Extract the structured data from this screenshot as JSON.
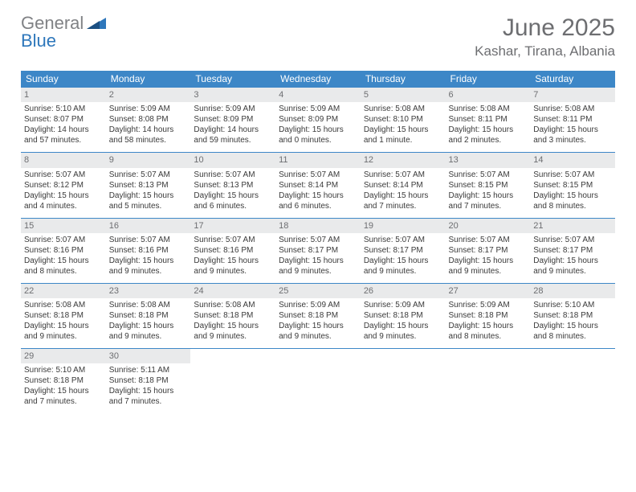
{
  "brand": {
    "part1": "General",
    "part2": "Blue"
  },
  "title": "June 2025",
  "location": "Kashar, Tirana, Albania",
  "colors": {
    "header_bg": "#3d87c7",
    "header_text": "#ffffff",
    "daynum_bg": "#e9eaeb",
    "daynum_text": "#6d6e71",
    "row_border": "#3d87c7",
    "title_text": "#6d6e71",
    "body_text": "#3a3a3a",
    "logo_gray": "#808285",
    "logo_blue": "#2e77bb",
    "background": "#ffffff"
  },
  "typography": {
    "title_fontsize": 30,
    "location_fontsize": 17,
    "header_fontsize": 12,
    "daynum_fontsize": 11,
    "cell_fontsize": 10,
    "logo_fontsize": 22
  },
  "weekdays": [
    "Sunday",
    "Monday",
    "Tuesday",
    "Wednesday",
    "Thursday",
    "Friday",
    "Saturday"
  ],
  "weeks": [
    [
      {
        "day": "1",
        "sunrise": "Sunrise: 5:10 AM",
        "sunset": "Sunset: 8:07 PM",
        "daylight1": "Daylight: 14 hours",
        "daylight2": "and 57 minutes."
      },
      {
        "day": "2",
        "sunrise": "Sunrise: 5:09 AM",
        "sunset": "Sunset: 8:08 PM",
        "daylight1": "Daylight: 14 hours",
        "daylight2": "and 58 minutes."
      },
      {
        "day": "3",
        "sunrise": "Sunrise: 5:09 AM",
        "sunset": "Sunset: 8:09 PM",
        "daylight1": "Daylight: 14 hours",
        "daylight2": "and 59 minutes."
      },
      {
        "day": "4",
        "sunrise": "Sunrise: 5:09 AM",
        "sunset": "Sunset: 8:09 PM",
        "daylight1": "Daylight: 15 hours",
        "daylight2": "and 0 minutes."
      },
      {
        "day": "5",
        "sunrise": "Sunrise: 5:08 AM",
        "sunset": "Sunset: 8:10 PM",
        "daylight1": "Daylight: 15 hours",
        "daylight2": "and 1 minute."
      },
      {
        "day": "6",
        "sunrise": "Sunrise: 5:08 AM",
        "sunset": "Sunset: 8:11 PM",
        "daylight1": "Daylight: 15 hours",
        "daylight2": "and 2 minutes."
      },
      {
        "day": "7",
        "sunrise": "Sunrise: 5:08 AM",
        "sunset": "Sunset: 8:11 PM",
        "daylight1": "Daylight: 15 hours",
        "daylight2": "and 3 minutes."
      }
    ],
    [
      {
        "day": "8",
        "sunrise": "Sunrise: 5:07 AM",
        "sunset": "Sunset: 8:12 PM",
        "daylight1": "Daylight: 15 hours",
        "daylight2": "and 4 minutes."
      },
      {
        "day": "9",
        "sunrise": "Sunrise: 5:07 AM",
        "sunset": "Sunset: 8:13 PM",
        "daylight1": "Daylight: 15 hours",
        "daylight2": "and 5 minutes."
      },
      {
        "day": "10",
        "sunrise": "Sunrise: 5:07 AM",
        "sunset": "Sunset: 8:13 PM",
        "daylight1": "Daylight: 15 hours",
        "daylight2": "and 6 minutes."
      },
      {
        "day": "11",
        "sunrise": "Sunrise: 5:07 AM",
        "sunset": "Sunset: 8:14 PM",
        "daylight1": "Daylight: 15 hours",
        "daylight2": "and 6 minutes."
      },
      {
        "day": "12",
        "sunrise": "Sunrise: 5:07 AM",
        "sunset": "Sunset: 8:14 PM",
        "daylight1": "Daylight: 15 hours",
        "daylight2": "and 7 minutes."
      },
      {
        "day": "13",
        "sunrise": "Sunrise: 5:07 AM",
        "sunset": "Sunset: 8:15 PM",
        "daylight1": "Daylight: 15 hours",
        "daylight2": "and 7 minutes."
      },
      {
        "day": "14",
        "sunrise": "Sunrise: 5:07 AM",
        "sunset": "Sunset: 8:15 PM",
        "daylight1": "Daylight: 15 hours",
        "daylight2": "and 8 minutes."
      }
    ],
    [
      {
        "day": "15",
        "sunrise": "Sunrise: 5:07 AM",
        "sunset": "Sunset: 8:16 PM",
        "daylight1": "Daylight: 15 hours",
        "daylight2": "and 8 minutes."
      },
      {
        "day": "16",
        "sunrise": "Sunrise: 5:07 AM",
        "sunset": "Sunset: 8:16 PM",
        "daylight1": "Daylight: 15 hours",
        "daylight2": "and 9 minutes."
      },
      {
        "day": "17",
        "sunrise": "Sunrise: 5:07 AM",
        "sunset": "Sunset: 8:16 PM",
        "daylight1": "Daylight: 15 hours",
        "daylight2": "and 9 minutes."
      },
      {
        "day": "18",
        "sunrise": "Sunrise: 5:07 AM",
        "sunset": "Sunset: 8:17 PM",
        "daylight1": "Daylight: 15 hours",
        "daylight2": "and 9 minutes."
      },
      {
        "day": "19",
        "sunrise": "Sunrise: 5:07 AM",
        "sunset": "Sunset: 8:17 PM",
        "daylight1": "Daylight: 15 hours",
        "daylight2": "and 9 minutes."
      },
      {
        "day": "20",
        "sunrise": "Sunrise: 5:07 AM",
        "sunset": "Sunset: 8:17 PM",
        "daylight1": "Daylight: 15 hours",
        "daylight2": "and 9 minutes."
      },
      {
        "day": "21",
        "sunrise": "Sunrise: 5:07 AM",
        "sunset": "Sunset: 8:17 PM",
        "daylight1": "Daylight: 15 hours",
        "daylight2": "and 9 minutes."
      }
    ],
    [
      {
        "day": "22",
        "sunrise": "Sunrise: 5:08 AM",
        "sunset": "Sunset: 8:18 PM",
        "daylight1": "Daylight: 15 hours",
        "daylight2": "and 9 minutes."
      },
      {
        "day": "23",
        "sunrise": "Sunrise: 5:08 AM",
        "sunset": "Sunset: 8:18 PM",
        "daylight1": "Daylight: 15 hours",
        "daylight2": "and 9 minutes."
      },
      {
        "day": "24",
        "sunrise": "Sunrise: 5:08 AM",
        "sunset": "Sunset: 8:18 PM",
        "daylight1": "Daylight: 15 hours",
        "daylight2": "and 9 minutes."
      },
      {
        "day": "25",
        "sunrise": "Sunrise: 5:09 AM",
        "sunset": "Sunset: 8:18 PM",
        "daylight1": "Daylight: 15 hours",
        "daylight2": "and 9 minutes."
      },
      {
        "day": "26",
        "sunrise": "Sunrise: 5:09 AM",
        "sunset": "Sunset: 8:18 PM",
        "daylight1": "Daylight: 15 hours",
        "daylight2": "and 9 minutes."
      },
      {
        "day": "27",
        "sunrise": "Sunrise: 5:09 AM",
        "sunset": "Sunset: 8:18 PM",
        "daylight1": "Daylight: 15 hours",
        "daylight2": "and 8 minutes."
      },
      {
        "day": "28",
        "sunrise": "Sunrise: 5:10 AM",
        "sunset": "Sunset: 8:18 PM",
        "daylight1": "Daylight: 15 hours",
        "daylight2": "and 8 minutes."
      }
    ],
    [
      {
        "day": "29",
        "sunrise": "Sunrise: 5:10 AM",
        "sunset": "Sunset: 8:18 PM",
        "daylight1": "Daylight: 15 hours",
        "daylight2": "and 7 minutes."
      },
      {
        "day": "30",
        "sunrise": "Sunrise: 5:11 AM",
        "sunset": "Sunset: 8:18 PM",
        "daylight1": "Daylight: 15 hours",
        "daylight2": "and 7 minutes."
      },
      null,
      null,
      null,
      null,
      null
    ]
  ]
}
